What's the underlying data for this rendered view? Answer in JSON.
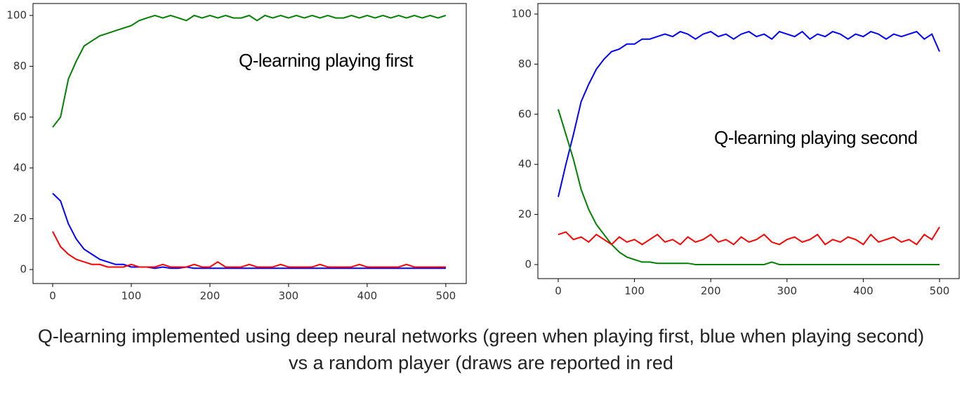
{
  "chart_data": [
    {
      "type": "line",
      "annotation": "Q-learning playing first",
      "x": [
        0,
        10,
        20,
        30,
        40,
        50,
        60,
        70,
        80,
        90,
        100,
        110,
        120,
        130,
        140,
        150,
        160,
        170,
        180,
        190,
        200,
        210,
        220,
        230,
        240,
        250,
        260,
        270,
        280,
        290,
        300,
        310,
        320,
        330,
        340,
        350,
        360,
        370,
        380,
        390,
        400,
        410,
        420,
        430,
        440,
        450,
        460,
        470,
        480,
        490,
        500
      ],
      "series": [
        {
          "color": "#008000",
          "values": [
            56,
            60,
            75,
            82,
            88,
            90,
            92,
            93,
            94,
            95,
            96,
            98,
            99,
            100,
            99,
            100,
            99,
            98,
            100,
            99,
            100,
            99,
            100,
            99,
            99,
            100,
            98,
            100,
            99,
            100,
            99,
            100,
            99,
            100,
            99,
            100,
            99,
            99,
            100,
            99,
            100,
            99,
            100,
            99,
            100,
            99,
            100,
            99,
            100,
            99,
            100
          ]
        },
        {
          "color": "#0000ff",
          "values": [
            30,
            27,
            18,
            12,
            8,
            6,
            4,
            3,
            2,
            2,
            1,
            1,
            1,
            0.5,
            1,
            0.5,
            0.5,
            1,
            0.5,
            0.5,
            0.5,
            0.5,
            0.5,
            0.5,
            0.5,
            0.5,
            0.5,
            0.5,
            0.5,
            0.5,
            0.5,
            0.5,
            0.5,
            0.5,
            0.5,
            0.5,
            0.5,
            0.5,
            0.5,
            0.5,
            0.5,
            0.5,
            0.5,
            0.5,
            0.5,
            0.5,
            0.5,
            0.5,
            0.5,
            0.5,
            0.5
          ]
        },
        {
          "color": "#ff0000",
          "values": [
            15,
            9,
            6,
            4,
            3,
            2,
            2,
            1,
            1,
            1,
            2,
            1,
            1,
            1,
            2,
            1,
            1,
            1,
            2,
            1,
            1,
            3,
            1,
            1,
            1,
            2,
            1,
            1,
            1,
            2,
            1,
            1,
            1,
            1,
            2,
            1,
            1,
            1,
            1,
            2,
            1,
            1,
            1,
            1,
            1,
            2,
            1,
            1,
            1,
            1,
            1
          ]
        }
      ],
      "xlim": [
        -25,
        526
      ],
      "xticks": [
        0,
        100,
        200,
        300,
        400,
        500
      ],
      "ylim": [
        -5.5,
        104.7
      ],
      "yticks": [
        0,
        20,
        40,
        60,
        80,
        100
      ]
    },
    {
      "type": "line",
      "annotation": "Q-learning playing second",
      "x": [
        0,
        10,
        20,
        30,
        40,
        50,
        60,
        70,
        80,
        90,
        100,
        110,
        120,
        130,
        140,
        150,
        160,
        170,
        180,
        190,
        200,
        210,
        220,
        230,
        240,
        250,
        260,
        270,
        280,
        290,
        300,
        310,
        320,
        330,
        340,
        350,
        360,
        370,
        380,
        390,
        400,
        410,
        420,
        430,
        440,
        450,
        460,
        470,
        480,
        490,
        500
      ],
      "series": [
        {
          "color": "#0000ff",
          "values": [
            27,
            40,
            52,
            65,
            72,
            78,
            82,
            85,
            86,
            88,
            88,
            90,
            90,
            91,
            92,
            91,
            93,
            92,
            90,
            92,
            93,
            91,
            92,
            90,
            92,
            93,
            91,
            92,
            90,
            93,
            92,
            91,
            93,
            90,
            92,
            91,
            93,
            92,
            90,
            92,
            91,
            93,
            92,
            90,
            92,
            91,
            92,
            93,
            90,
            92,
            85
          ]
        },
        {
          "color": "#008000",
          "values": [
            62,
            52,
            42,
            30,
            22,
            16,
            12,
            8,
            5,
            3,
            2,
            1,
            1,
            0.5,
            0.5,
            0.5,
            0.5,
            0.5,
            0,
            0,
            0,
            0,
            0,
            0,
            0,
            0,
            0,
            0,
            1,
            0,
            0,
            0,
            0,
            0,
            0,
            0,
            0,
            0,
            0,
            0,
            0,
            0,
            0,
            0,
            0,
            0,
            0,
            0,
            0,
            0,
            0
          ]
        },
        {
          "color": "#ff0000",
          "values": [
            12,
            13,
            10,
            11,
            9,
            12,
            10,
            8,
            11,
            9,
            10,
            8,
            10,
            12,
            9,
            10,
            8,
            11,
            9,
            10,
            12,
            9,
            10,
            8,
            11,
            9,
            10,
            12,
            9,
            8,
            10,
            11,
            9,
            10,
            12,
            8,
            10,
            9,
            11,
            10,
            8,
            12,
            9,
            10,
            11,
            9,
            10,
            8,
            12,
            10,
            15
          ]
        }
      ],
      "xlim": [
        -26.7,
        525.8
      ],
      "xticks": [
        0,
        100,
        200,
        300,
        400,
        500
      ],
      "ylim": [
        -5.6,
        104.2
      ],
      "yticks": [
        0,
        20,
        40,
        60,
        80,
        100
      ]
    }
  ],
  "caption": "Q-learning implemented using deep neural networks (green when playing first, blue when playing second) vs a random player (draws are reported in red"
}
